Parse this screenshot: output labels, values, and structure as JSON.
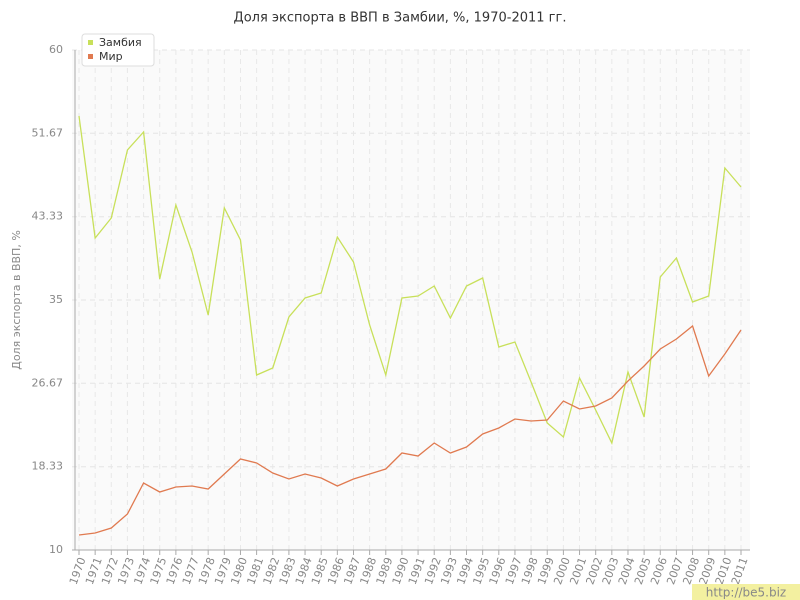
{
  "chart_data": {
    "type": "line",
    "title": "Доля экспорта в ВВП в Замбии, %, 1970-2011 гг.",
    "y_label": "Доля экспорта в ВВП, %",
    "watermark": "http://be5.biz",
    "x": [
      1970,
      1971,
      1972,
      1973,
      1974,
      1975,
      1976,
      1977,
      1978,
      1979,
      1980,
      1981,
      1982,
      1983,
      1984,
      1985,
      1986,
      1987,
      1988,
      1989,
      1990,
      1991,
      1992,
      1993,
      1994,
      1995,
      1996,
      1997,
      1998,
      1999,
      2000,
      2001,
      2002,
      2003,
      2004,
      2005,
      2006,
      2007,
      2008,
      2009,
      2010,
      2011
    ],
    "xlim": [
      1970,
      2011
    ],
    "ylim": [
      10,
      60
    ],
    "yticks": [
      10,
      18.33,
      26.67,
      35,
      43.33,
      51.67,
      60
    ],
    "grid": true,
    "legend": "top-left",
    "series": [
      {
        "name": "Замбия",
        "color": "#c8e05a",
        "values": [
          53.4,
          41.2,
          43.2,
          50,
          51.8,
          37.1,
          44.5,
          39.8,
          33.5,
          44.2,
          41,
          27.5,
          28.2,
          33.3,
          35.2,
          35.7,
          41.3,
          38.8,
          32.5,
          27.5,
          35.2,
          35.4,
          36.4,
          33.2,
          36.4,
          37.2,
          30.3,
          30.8,
          26.8,
          22.7,
          21.3,
          27.2,
          24,
          20.7,
          27.8,
          23.3,
          37.3,
          39.2,
          34.8,
          35.4,
          48.2,
          46.3
        ]
      },
      {
        "name": "Мир",
        "color": "#e07a50",
        "values": [
          11.5,
          11.7,
          12.2,
          13.6,
          16.7,
          15.8,
          16.3,
          16.4,
          16.1,
          17.6,
          19.1,
          18.7,
          17.7,
          17.1,
          17.6,
          17.2,
          16.4,
          17.1,
          17.6,
          18.1,
          19.7,
          19.4,
          20.7,
          19.7,
          20.3,
          21.6,
          22.2,
          23.1,
          22.9,
          23,
          24.9,
          24.1,
          24.4,
          25.2,
          26.9,
          28.4,
          30.1,
          31.1,
          32.4,
          27.4,
          29.6,
          32
        ]
      }
    ]
  }
}
